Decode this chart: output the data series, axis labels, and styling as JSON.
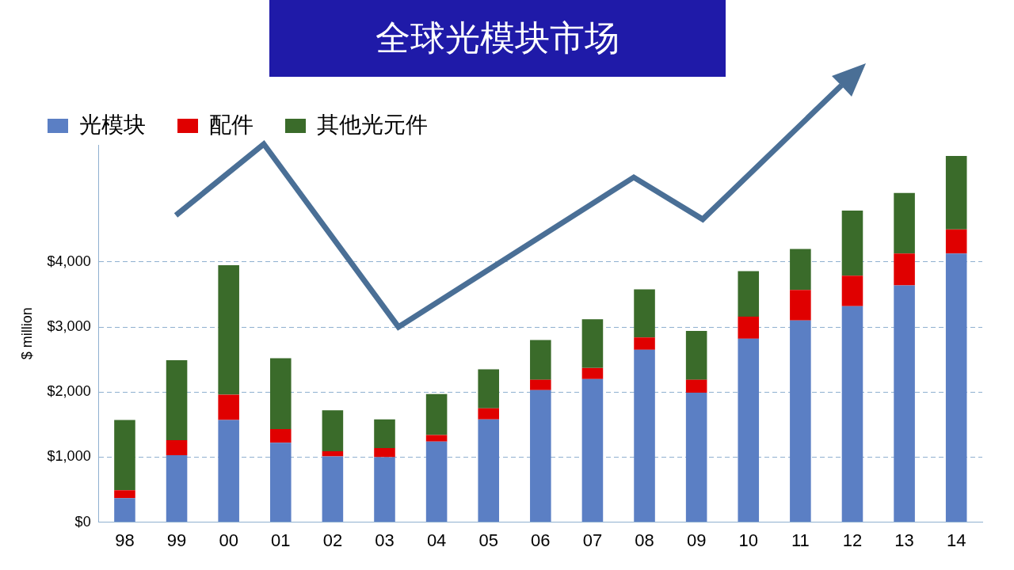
{
  "chart_data": {
    "type": "bar",
    "title": "全球光模块市场",
    "ylabel": "$ million",
    "categories": [
      "98",
      "99",
      "00",
      "01",
      "02",
      "03",
      "04",
      "05",
      "06",
      "07",
      "08",
      "09",
      "10",
      "11",
      "12",
      "13",
      "14"
    ],
    "series": [
      {
        "name": "光模块",
        "color": "#5b7fc4",
        "values": [
          370,
          1030,
          1570,
          1220,
          1010,
          1000,
          1240,
          1580,
          2030,
          2200,
          2650,
          1990,
          2820,
          3100,
          3320,
          3640,
          4130
        ]
      },
      {
        "name": "配件",
        "color": "#e00000",
        "values": [
          120,
          230,
          390,
          210,
          80,
          140,
          100,
          170,
          160,
          170,
          190,
          200,
          340,
          470,
          470,
          490,
          370
        ]
      },
      {
        "name": "其他光元件",
        "color": "#3a6b2a",
        "values": [
          1080,
          1230,
          1990,
          1090,
          630,
          440,
          630,
          600,
          610,
          750,
          740,
          750,
          700,
          630,
          1000,
          930,
          1130
        ]
      }
    ],
    "stacked": true,
    "ylim": [
      0,
      5800
    ],
    "yticks": [
      {
        "value": 0,
        "label": "$0"
      },
      {
        "value": 1000,
        "label": "$1,000"
      },
      {
        "value": 2000,
        "label": "$2,000"
      },
      {
        "value": 3000,
        "label": "$3,000"
      },
      {
        "value": 4000,
        "label": "$4,000"
      }
    ],
    "grid": "y",
    "legend": "top left"
  }
}
